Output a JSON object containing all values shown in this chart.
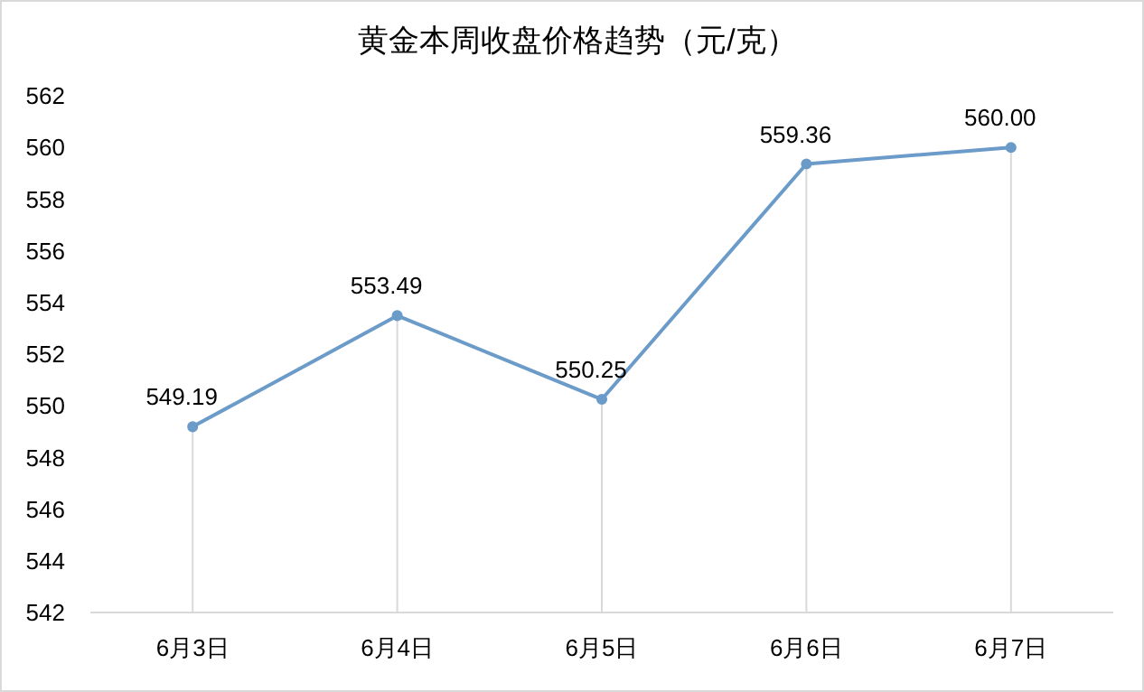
{
  "chart_data": {
    "type": "line",
    "title": "黄金本周收盘价格趋势（元/克）",
    "categories": [
      "6月3日",
      "6月4日",
      "6月5日",
      "6月6日",
      "6月7日"
    ],
    "series": [
      {
        "color": "#6b9bc8",
        "values": [
          549.19,
          553.49,
          550.25,
          559.36,
          560.0
        ],
        "value_labels": [
          "549.19",
          "553.49",
          "550.25",
          "559.36",
          "560.00"
        ]
      }
    ],
    "ylim": [
      542,
      562
    ],
    "yticks": [
      542,
      544,
      546,
      548,
      550,
      552,
      554,
      556,
      558,
      560,
      562
    ],
    "grid": "x",
    "marker": "circle",
    "line_style": "solid"
  }
}
